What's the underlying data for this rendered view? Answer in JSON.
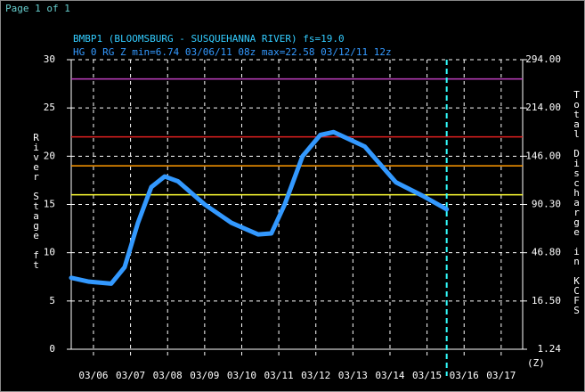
{
  "page": {
    "label": "Page 1 of 1"
  },
  "chart_data": {
    "type": "line",
    "title": "BMBP1 (BLOOMSBURG - SUSQUEHANNA RIVER) fs=19.0",
    "subtitle": "HG 0 RG Z min=6.74 03/06/11 08z max=22.58 03/12/11 12z",
    "y_label": "River Stage ft",
    "y2_label": "Total Discharge in KCFS",
    "x_unit_label": "(Z)",
    "categories": [
      "03/06",
      "03/07",
      "03/08",
      "03/09",
      "03/10",
      "03/11",
      "03/12",
      "03/13",
      "03/14",
      "03/15",
      "03/16",
      "03/17"
    ],
    "xlim": [
      5.4,
      17.58
    ],
    "ylim": [
      0,
      30
    ],
    "yticks": [
      0,
      5,
      10,
      15,
      20,
      25,
      30
    ],
    "y2ticks": [
      {
        "value": 1.24,
        "label": "1.24"
      },
      {
        "value": 16.5,
        "label": "16.50"
      },
      {
        "value": 46.8,
        "label": "46.80"
      },
      {
        "value": 90.3,
        "label": "90.30"
      },
      {
        "value": 146,
        "label": "146.00"
      },
      {
        "value": 214,
        "label": "214.00"
      },
      {
        "value": 294,
        "label": "294.00"
      }
    ],
    "grid": true,
    "thresholds": [
      {
        "value": 28,
        "color": "#c040c0"
      },
      {
        "value": 22,
        "color": "#e02020"
      },
      {
        "value": 19,
        "color": "#ff9900"
      },
      {
        "value": 16,
        "color": "#ffff33"
      }
    ],
    "now_x": 15.53,
    "series": [
      {
        "color": "#3399ff",
        "x": [
          5.4,
          5.88,
          6.48,
          6.84,
          7.2,
          7.56,
          7.92,
          8.28,
          9.0,
          9.72,
          10.44,
          10.8,
          11.16,
          11.64,
          12.12,
          12.48,
          13.32,
          14.16,
          14.88,
          15.53
        ],
        "values": [
          7.4,
          7.0,
          6.8,
          8.5,
          13.1,
          16.8,
          17.9,
          17.4,
          15.0,
          13.1,
          11.9,
          12.0,
          15.0,
          20.0,
          22.2,
          22.5,
          21.0,
          17.3,
          15.9,
          14.5
        ]
      }
    ]
  }
}
